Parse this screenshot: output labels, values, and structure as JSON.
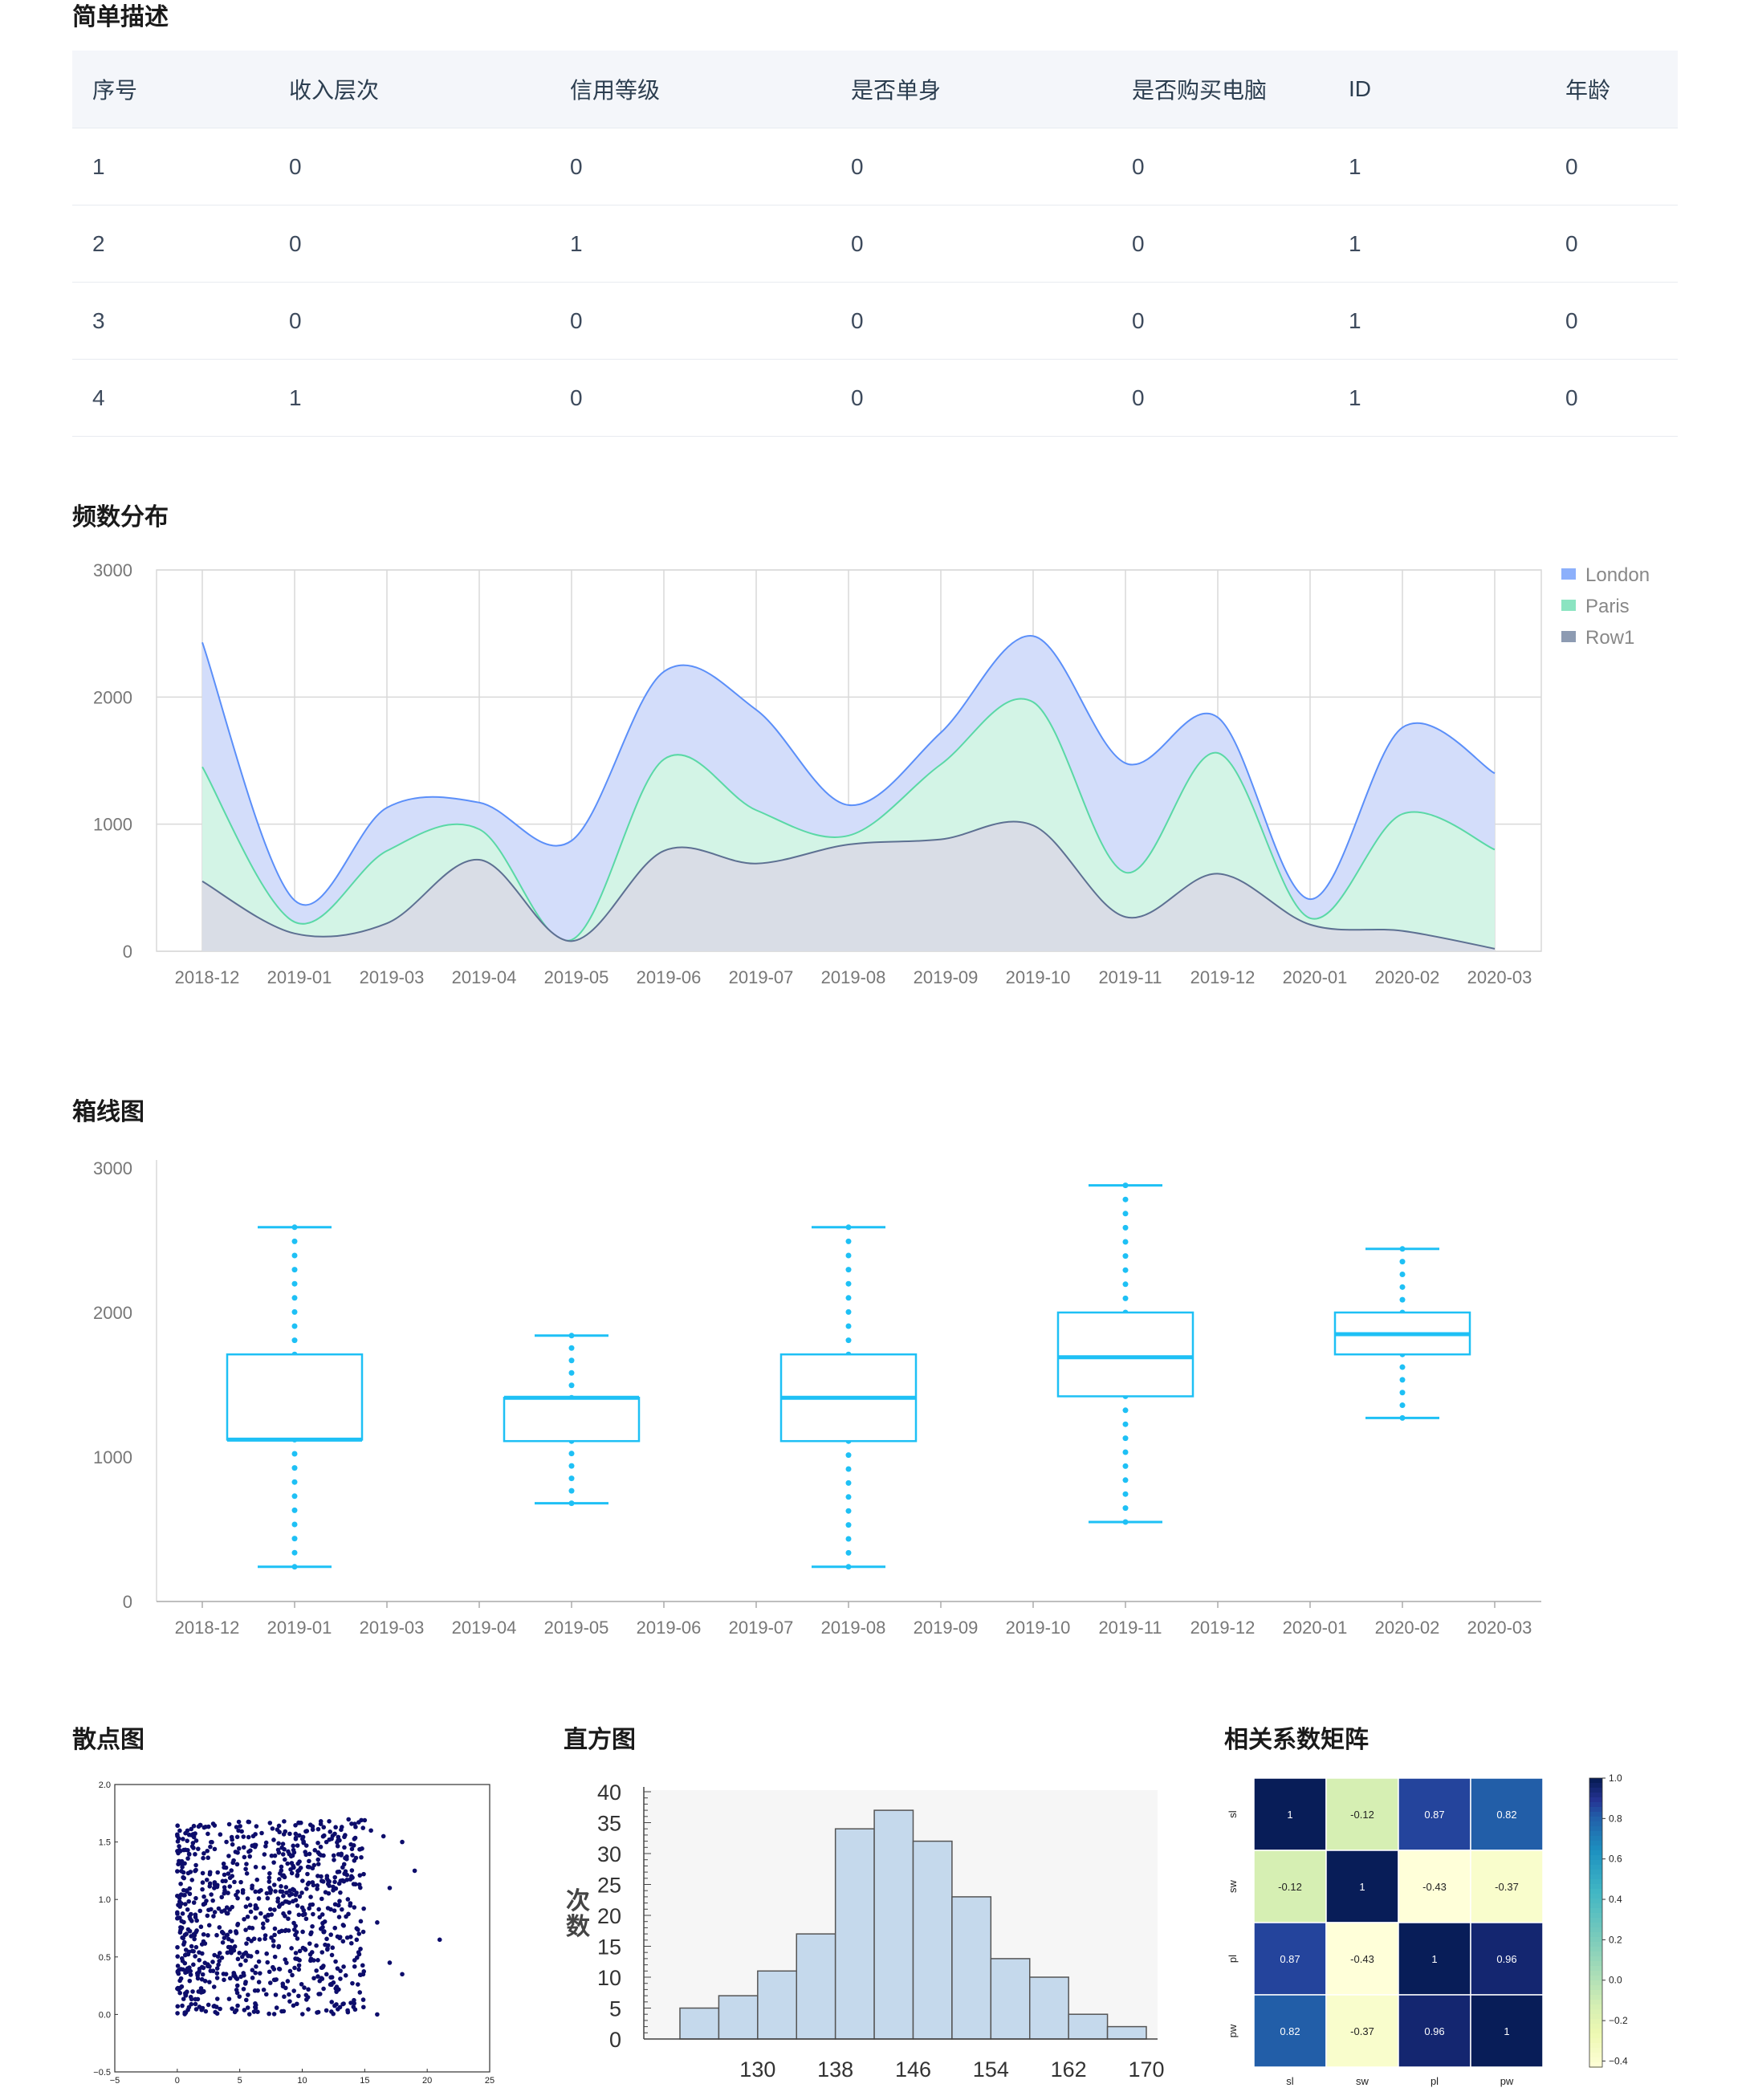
{
  "sections": {
    "description": "简单描述",
    "frequency": "频数分布",
    "boxplot": "箱线图",
    "scatter": "散点图",
    "histogram": "直方图",
    "correlation": "相关系数矩阵"
  },
  "table": {
    "headers": [
      "序号",
      "收入层次",
      "信用等级",
      "是否单身",
      "是否购买电脑",
      "ID",
      "年龄"
    ],
    "rows": [
      [
        "1",
        "0",
        "0",
        "0",
        "0",
        "1",
        "0"
      ],
      [
        "2",
        "0",
        "1",
        "0",
        "0",
        "1",
        "0"
      ],
      [
        "3",
        "0",
        "0",
        "0",
        "0",
        "1",
        "0"
      ],
      [
        "4",
        "1",
        "0",
        "0",
        "0",
        "1",
        "0"
      ]
    ]
  },
  "chart_data": [
    {
      "id": "frequency",
      "type": "area",
      "categories": [
        "2018-12",
        "2019-01",
        "2019-03",
        "2019-04",
        "2019-05",
        "2019-06",
        "2019-07",
        "2019-08",
        "2019-09",
        "2019-10",
        "2019-11",
        "2019-12",
        "2020-01",
        "2020-02",
        "2020-03"
      ],
      "ylim": [
        0,
        3000
      ],
      "yticks": [
        0,
        1000,
        2000,
        3000
      ],
      "stacked": false,
      "grid": true,
      "legend": "top-right",
      "series": [
        {
          "name": "London",
          "color": "#5b8ff9",
          "fill": "#d3ddfa",
          "values": [
            2430,
            400,
            1130,
            1170,
            870,
            2200,
            1900,
            1150,
            1720,
            2480,
            1480,
            1840,
            410,
            1760,
            1400
          ]
        },
        {
          "name": "Paris",
          "color": "#5ad8a6",
          "fill": "#d3f4e6",
          "values": [
            1450,
            230,
            790,
            960,
            90,
            1510,
            1110,
            910,
            1470,
            1960,
            620,
            1560,
            260,
            1080,
            800
          ]
        },
        {
          "name": "Row1",
          "color": "#5d7092",
          "fill": "#d9dde6",
          "values": [
            550,
            140,
            220,
            720,
            80,
            790,
            690,
            840,
            880,
            990,
            270,
            610,
            210,
            160,
            20
          ]
        }
      ]
    },
    {
      "id": "boxplot",
      "type": "box",
      "categories": [
        "2018-12",
        "2019-01",
        "2019-03",
        "2019-04",
        "2019-05",
        "2019-06",
        "2019-07",
        "2019-08",
        "2019-09",
        "2019-10",
        "2019-11",
        "2019-12",
        "2020-01",
        "2020-02",
        "2020-03"
      ],
      "ylim": [
        0,
        3000
      ],
      "yticks": [
        0,
        1000,
        2000,
        3000
      ],
      "color": "#1ec0f5",
      "boxes": [
        {
          "category": "2019-01",
          "min": 240,
          "q1": 1120,
          "median": 1120,
          "q3": 1710,
          "max": 2590
        },
        {
          "category": "2019-05",
          "min": 680,
          "q1": 1110,
          "median": 1410,
          "q3": 1410,
          "max": 1840
        },
        {
          "category": "2019-08",
          "min": 240,
          "q1": 1110,
          "median": 1410,
          "q3": 1710,
          "max": 2590
        },
        {
          "category": "2019-11",
          "min": 550,
          "q1": 1420,
          "median": 1690,
          "q3": 2000,
          "max": 2880
        },
        {
          "category": "2020-02",
          "min": 1270,
          "q1": 1710,
          "median": 1850,
          "q3": 2000,
          "max": 2440
        }
      ]
    },
    {
      "id": "scatter",
      "type": "scatter",
      "xlim": [
        -5,
        25
      ],
      "ylim": [
        -0.5,
        2.0
      ],
      "xticks": [
        "−5",
        "0",
        "5",
        "10",
        "15",
        "20",
        "25"
      ],
      "yticks": [
        "−0.5",
        "0.0",
        "0.5",
        "1.0",
        "1.5",
        "2.0"
      ],
      "color": "#0d0d6b",
      "points": [
        [
          18,
          1.5
        ],
        [
          21,
          0.65
        ],
        [
          18,
          0.35
        ],
        [
          16,
          0.0
        ],
        [
          15.5,
          1.6
        ],
        [
          17,
          1.1
        ],
        [
          16,
          0.8
        ],
        [
          17,
          0.45
        ],
        [
          19,
          1.25
        ],
        [
          16.5,
          1.55
        ]
      ],
      "bulk_region": {
        "x": [
          0,
          15
        ],
        "y": [
          0,
          1.7
        ],
        "count": 900
      }
    },
    {
      "id": "histogram",
      "type": "bar",
      "ylabel": "次数",
      "ylim": [
        0,
        40
      ],
      "yticks": [
        0,
        5,
        10,
        15,
        20,
        25,
        30,
        35,
        40
      ],
      "xticks": [
        130,
        138,
        146,
        154,
        162,
        170
      ],
      "bin_edges": [
        122,
        126,
        130,
        134,
        138,
        142,
        146,
        150,
        154,
        158,
        162,
        166,
        170
      ],
      "values": [
        5,
        7,
        11,
        17,
        34,
        37,
        32,
        23,
        13,
        10,
        4,
        2
      ],
      "color": "#c5d9ec"
    },
    {
      "id": "correlation",
      "type": "heatmap",
      "labels": [
        "sl",
        "sw",
        "pl",
        "pw"
      ],
      "matrix": [
        [
          1,
          -0.12,
          0.87,
          0.82
        ],
        [
          -0.12,
          1,
          -0.43,
          -0.37
        ],
        [
          0.87,
          -0.43,
          1,
          0.96
        ],
        [
          0.82,
          -0.37,
          0.96,
          1
        ]
      ],
      "cell_text": [
        [
          "1",
          "-0.12",
          "0.87",
          "0.82"
        ],
        [
          "-0.12",
          "1",
          "-0.43",
          "-0.37"
        ],
        [
          "0.87",
          "-0.43",
          "1",
          "0.96"
        ],
        [
          "0.82",
          "-0.37",
          "0.96",
          "1"
        ]
      ],
      "colorbar_ticks": [
        "1.0",
        "0.8",
        "0.6",
        "0.4",
        "0.2",
        "0.0",
        "−0.2",
        "−0.4"
      ],
      "colormap": "YlGnBu",
      "range": [
        -0.43,
        1.0
      ]
    }
  ]
}
